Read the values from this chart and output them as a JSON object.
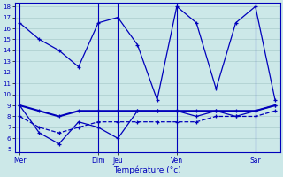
{
  "background_color": "#cce8e8",
  "grid_color": "#aacccc",
  "line_color": "#0000bb",
  "xlabel": "Température (°c)",
  "ylim": [
    5,
    18
  ],
  "yticks": [
    5,
    6,
    7,
    8,
    9,
    10,
    11,
    12,
    13,
    14,
    15,
    16,
    17,
    18
  ],
  "day_labels": [
    "Mer",
    "Dim",
    "Jeu",
    "Ven",
    "Sar"
  ],
  "day_tick_positions": [
    0,
    8,
    10,
    16,
    24
  ],
  "xlim": [
    0,
    26
  ],
  "x_values": [
    0,
    2,
    4,
    6,
    8,
    10,
    12,
    14,
    16,
    18,
    20,
    22,
    24,
    26
  ],
  "series_max": [
    16.5,
    15.0,
    14.0,
    12.5,
    16.5,
    17.0,
    14.5,
    9.5,
    18.0,
    16.5,
    10.5,
    16.5,
    18.0,
    9.5
  ],
  "series_min": [
    9.0,
    6.5,
    5.5,
    7.5,
    7.0,
    6.0,
    8.5,
    8.5,
    8.5,
    8.0,
    8.5,
    8.0,
    8.5,
    9.0
  ],
  "series_avg1": [
    9.0,
    8.5,
    8.0,
    8.5,
    8.5,
    8.5,
    8.5,
    8.5,
    8.5,
    8.5,
    8.5,
    8.5,
    8.5,
    9.0
  ],
  "series_avg2": [
    8.0,
    7.0,
    6.5,
    7.0,
    7.5,
    7.5,
    7.5,
    7.5,
    7.5,
    7.5,
    8.0,
    8.0,
    8.0,
    8.5
  ]
}
